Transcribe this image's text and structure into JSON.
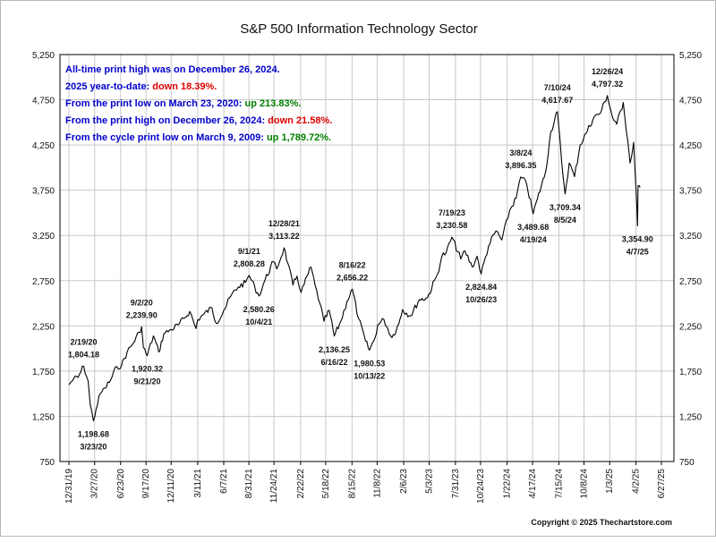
{
  "chart_data": {
    "type": "line",
    "title": "S&P 500 Information Technology Sector",
    "ylim": [
      750,
      5250
    ],
    "y_ticks": [
      "5,250",
      "4,750",
      "4,250",
      "3,750",
      "3,250",
      "2,750",
      "2,250",
      "1,750",
      "1,250",
      "750"
    ],
    "y_tick_values": [
      5250,
      4750,
      4250,
      3750,
      3250,
      2750,
      2250,
      1750,
      1250,
      750
    ],
    "x_range": [
      "2019-12-31",
      "2025-06-27"
    ],
    "x_ticks": [
      "12/31/19",
      "3/27/20",
      "6/23/20",
      "9/17/20",
      "12/11/20",
      "3/11/21",
      "6/7/21",
      "8/31/21",
      "11/24/21",
      "2/22/22",
      "5/18/22",
      "8/15/22",
      "11/8/22",
      "2/6/23",
      "5/3/23",
      "7/31/23",
      "10/24/23",
      "1/22/24",
      "4/17/24",
      "7/15/24",
      "10/8/24",
      "1/3/25",
      "4/2/25",
      "6/27/25"
    ],
    "x_tick_dates": [
      "2019-12-31",
      "2020-03-27",
      "2020-06-23",
      "2020-09-17",
      "2020-12-11",
      "2021-03-11",
      "2021-06-07",
      "2021-08-31",
      "2021-11-24",
      "2022-02-22",
      "2022-05-18",
      "2022-08-15",
      "2022-11-08",
      "2023-02-06",
      "2023-05-03",
      "2023-07-31",
      "2023-10-24",
      "2024-01-22",
      "2024-04-17",
      "2024-07-15",
      "2024-10-08",
      "2025-01-03",
      "2025-04-02",
      "2025-06-27"
    ],
    "grid": true,
    "series": [
      {
        "color": "#000000",
        "points": [
          [
            "2019-12-31",
            1600
          ],
          [
            "2020-01-15",
            1660
          ],
          [
            "2020-01-31",
            1680
          ],
          [
            "2020-02-19",
            1804.18
          ],
          [
            "2020-03-05",
            1640
          ],
          [
            "2020-03-12",
            1380
          ],
          [
            "2020-03-23",
            1198.68
          ],
          [
            "2020-04-01",
            1330
          ],
          [
            "2020-04-15",
            1500
          ],
          [
            "2020-05-01",
            1560
          ],
          [
            "2020-05-20",
            1650
          ],
          [
            "2020-06-10",
            1800
          ],
          [
            "2020-06-26",
            1810
          ],
          [
            "2020-07-15",
            1960
          ],
          [
            "2020-08-05",
            2060
          ],
          [
            "2020-08-25",
            2180
          ],
          [
            "2020-09-02",
            2239.9
          ],
          [
            "2020-09-08",
            2010
          ],
          [
            "2020-09-21",
            1920.32
          ],
          [
            "2020-10-12",
            2140
          ],
          [
            "2020-10-30",
            1960
          ],
          [
            "2020-11-16",
            2160
          ],
          [
            "2020-12-11",
            2210
          ],
          [
            "2021-01-04",
            2260
          ],
          [
            "2021-01-26",
            2340
          ],
          [
            "2021-02-12",
            2410
          ],
          [
            "2021-03-05",
            2220
          ],
          [
            "2021-03-11",
            2320
          ],
          [
            "2021-04-01",
            2380
          ],
          [
            "2021-04-28",
            2450
          ],
          [
            "2021-05-12",
            2280
          ],
          [
            "2021-06-07",
            2420
          ],
          [
            "2021-07-01",
            2580
          ],
          [
            "2021-07-26",
            2680
          ],
          [
            "2021-08-20",
            2730
          ],
          [
            "2021-09-01",
            2808.28
          ],
          [
            "2021-09-20",
            2680
          ],
          [
            "2021-10-04",
            2580.26
          ],
          [
            "2021-10-25",
            2760
          ],
          [
            "2021-11-22",
            2960
          ],
          [
            "2021-12-03",
            2880
          ],
          [
            "2021-12-28",
            3113.22
          ],
          [
            "2022-01-10",
            2940
          ],
          [
            "2022-01-27",
            2700
          ],
          [
            "2022-02-10",
            2800
          ],
          [
            "2022-02-24",
            2620
          ],
          [
            "2022-03-29",
            2900
          ],
          [
            "2022-04-12",
            2700
          ],
          [
            "2022-04-28",
            2500
          ],
          [
            "2022-05-12",
            2300
          ],
          [
            "2022-05-30",
            2420
          ],
          [
            "2022-06-16",
            2136.25
          ],
          [
            "2022-07-08",
            2300
          ],
          [
            "2022-07-29",
            2520
          ],
          [
            "2022-08-16",
            2656.22
          ],
          [
            "2022-09-06",
            2330
          ],
          [
            "2022-09-30",
            2080
          ],
          [
            "2022-10-13",
            1980.53
          ],
          [
            "2022-11-01",
            2120
          ],
          [
            "2022-11-10",
            2260
          ],
          [
            "2022-12-01",
            2320
          ],
          [
            "2022-12-28",
            2120
          ],
          [
            "2023-01-20",
            2270
          ],
          [
            "2023-02-02",
            2430
          ],
          [
            "2023-03-01",
            2360
          ],
          [
            "2023-03-31",
            2540
          ],
          [
            "2023-04-27",
            2560
          ],
          [
            "2023-05-31",
            2820
          ],
          [
            "2023-06-15",
            3020
          ],
          [
            "2023-06-30",
            3060
          ],
          [
            "2023-07-19",
            3230.58
          ],
          [
            "2023-08-18",
            2990
          ],
          [
            "2023-09-01",
            3080
          ],
          [
            "2023-09-26",
            2900
          ],
          [
            "2023-10-12",
            3020
          ],
          [
            "2023-10-26",
            2824.84
          ],
          [
            "2023-11-20",
            3130
          ],
          [
            "2023-12-15",
            3300
          ],
          [
            "2024-01-04",
            3200
          ],
          [
            "2024-01-30",
            3520
          ],
          [
            "2024-02-21",
            3660
          ],
          [
            "2024-03-08",
            3896.35
          ],
          [
            "2024-03-28",
            3820
          ],
          [
            "2024-04-19",
            3489.68
          ],
          [
            "2024-05-03",
            3650
          ],
          [
            "2024-05-31",
            3950
          ],
          [
            "2024-06-18",
            4400
          ],
          [
            "2024-07-10",
            4617.67
          ],
          [
            "2024-07-24",
            4080
          ],
          [
            "2024-08-05",
            3709.34
          ],
          [
            "2024-08-19",
            4050
          ],
          [
            "2024-09-06",
            3900
          ],
          [
            "2024-09-25",
            4250
          ],
          [
            "2024-10-15",
            4380
          ],
          [
            "2024-11-11",
            4560
          ],
          [
            "2024-12-02",
            4600
          ],
          [
            "2024-12-26",
            4797.32
          ],
          [
            "2025-01-13",
            4550
          ],
          [
            "2025-01-27",
            4480
          ],
          [
            "2025-02-18",
            4720
          ],
          [
            "2025-03-05",
            4300
          ],
          [
            "2025-03-13",
            4050
          ],
          [
            "2025-03-25",
            4280
          ],
          [
            "2025-04-03",
            3700
          ],
          [
            "2025-04-07",
            3354.9
          ],
          [
            "2025-04-09",
            3800
          ],
          [
            "2025-04-16",
            3780
          ]
        ]
      }
    ],
    "annotations": [
      {
        "date_label": "2/19/20",
        "value_label": "1,804.18",
        "date": "2020-02-19",
        "value": 1804.18,
        "side": "above"
      },
      {
        "date_label": "3/23/20",
        "value_label": "1,198.68",
        "date": "2020-03-23",
        "value": 1198.68,
        "side": "below"
      },
      {
        "date_label": "9/2/20",
        "value_label": "2,239.90",
        "date": "2020-09-02",
        "value": 2239.9,
        "side": "above"
      },
      {
        "date_label": "9/21/20",
        "value_label": "1,920.32",
        "date": "2020-09-21",
        "value": 1920.32,
        "side": "below"
      },
      {
        "date_label": "9/1/21",
        "value_label": "2,808.28",
        "date": "2021-09-01",
        "value": 2808.28,
        "side": "above"
      },
      {
        "date_label": "10/4/21",
        "value_label": "2,580.26",
        "date": "2021-10-04",
        "value": 2580.26,
        "side": "below"
      },
      {
        "date_label": "12/28/21",
        "value_label": "3,113.22",
        "date": "2021-12-28",
        "value": 3113.22,
        "side": "above"
      },
      {
        "date_label": "6/16/22",
        "value_label": "2,136.25",
        "date": "2022-06-16",
        "value": 2136.25,
        "side": "below"
      },
      {
        "date_label": "8/16/22",
        "value_label": "2,656.22",
        "date": "2022-08-16",
        "value": 2656.22,
        "side": "above"
      },
      {
        "date_label": "10/13/22",
        "value_label": "1,980.53",
        "date": "2022-10-13",
        "value": 1980.53,
        "side": "below"
      },
      {
        "date_label": "7/19/23",
        "value_label": "3,230.58",
        "date": "2023-07-19",
        "value": 3230.58,
        "side": "above"
      },
      {
        "date_label": "10/26/23",
        "value_label": "2,824.84",
        "date": "2023-10-26",
        "value": 2824.84,
        "side": "below"
      },
      {
        "date_label": "3/8/24",
        "value_label": "3,896.35",
        "date": "2024-03-08",
        "value": 3896.35,
        "side": "above"
      },
      {
        "date_label": "4/19/24",
        "value_label": "3,489.68",
        "date": "2024-04-19",
        "value": 3489.68,
        "side": "below"
      },
      {
        "date_label": "7/10/24",
        "value_label": "4,617.67",
        "date": "2024-07-10",
        "value": 4617.67,
        "side": "above"
      },
      {
        "date_label": "8/5/24",
        "value_label": "3,709.34",
        "date": "2024-08-05",
        "value": 3709.34,
        "side": "below"
      },
      {
        "date_label": "12/26/24",
        "value_label": "4,797.32",
        "date": "2024-12-26",
        "value": 4797.32,
        "side": "above"
      },
      {
        "date_label": "4/7/25",
        "value_label": "3,354.90",
        "date": "2025-04-07",
        "value": 3354.9,
        "side": "below"
      }
    ],
    "notes": [
      {
        "parts": [
          {
            "text": "All-time print high was on December 26, 2024.",
            "color": "#0000cc"
          }
        ]
      },
      {
        "parts": [
          {
            "text": "2025 year-to-date:  ",
            "color": "#0000cc"
          },
          {
            "text": "down 18.39%.",
            "color": "#dd0000"
          }
        ]
      },
      {
        "parts": [
          {
            "text": "From the print low on March 23, 2020:  ",
            "color": "#0000cc"
          },
          {
            "text": "up 213.83%.",
            "color": "#008000"
          }
        ]
      },
      {
        "parts": [
          {
            "text": "From the print high on December 26, 2024:  ",
            "color": "#0000cc"
          },
          {
            "text": "down 21.58%.",
            "color": "#dd0000"
          }
        ]
      },
      {
        "parts": [
          {
            "text": "From the cycle print low on March 9, 2009:  ",
            "color": "#0000cc"
          },
          {
            "text": "up 1,789.72%.",
            "color": "#008000"
          }
        ]
      }
    ],
    "copyright": "Copyright © 2025 Thechartstore.com"
  }
}
